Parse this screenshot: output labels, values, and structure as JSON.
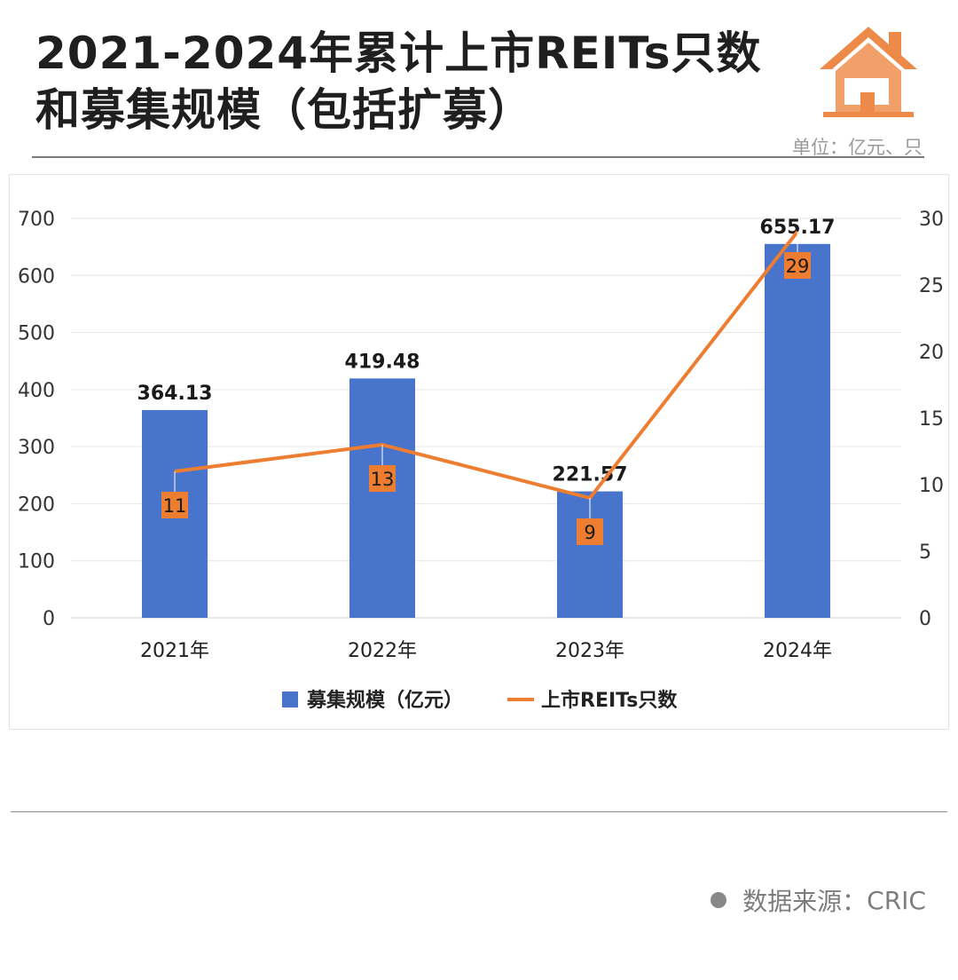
{
  "title": {
    "line1": "2021-2024年累计上市REITs只数",
    "line2": "和募集规模（包括扩募）"
  },
  "unit": "单位：亿元、只",
  "source": {
    "label": "数据来源：",
    "value": "CRIC"
  },
  "colors": {
    "bar": "#4874CB",
    "line": "#ED7D31",
    "label_box": "#ED7D31"
  },
  "chart_data": {
    "type": "bar",
    "categories": [
      "2021年",
      "2022年",
      "2023年",
      "2024年"
    ],
    "series": [
      {
        "name": "募集规模（亿元）",
        "type": "bar",
        "axis": "left",
        "values": [
          364.13,
          419.48,
          221.57,
          655.17
        ],
        "labels": [
          "364.13",
          "419.48",
          "221.57",
          "655.17"
        ]
      },
      {
        "name": "上市REITs只数",
        "type": "line",
        "axis": "right",
        "values": [
          11,
          13,
          9,
          29
        ],
        "labels": [
          "11",
          "13",
          "9",
          "29"
        ]
      }
    ],
    "y_left": {
      "min": 0,
      "max": 700,
      "step": 100,
      "ticks": [
        "0",
        "100",
        "200",
        "300",
        "400",
        "500",
        "600",
        "700"
      ]
    },
    "y_right": {
      "min": 0,
      "max": 30,
      "step": 5,
      "ticks": [
        "0",
        "5",
        "10",
        "15",
        "20",
        "25",
        "30"
      ]
    },
    "legend_position": "bottom-center",
    "grid": true
  }
}
